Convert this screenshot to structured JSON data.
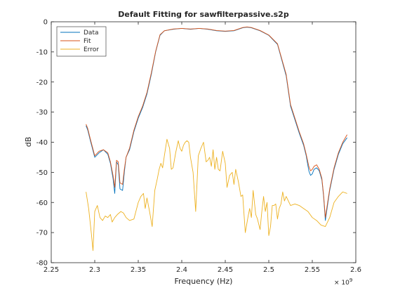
{
  "chart_data": {
    "type": "line",
    "title": "Default Fitting for sawfilterpassive.s2p",
    "xlabel": "Frequency (Hz)",
    "ylabel": "dB",
    "x_exponent_label": "× 10",
    "x_exponent_power": "9",
    "xlim": [
      2.25,
      2.6
    ],
    "ylim": [
      -80,
      0
    ],
    "x_unit_scale": 1000000000,
    "xticks": [
      2.25,
      2.3,
      2.35,
      2.4,
      2.45,
      2.5,
      2.55,
      2.6
    ],
    "xtick_labels": [
      "2.25",
      "2.3",
      "2.35",
      "2.4",
      "2.45",
      "2.5",
      "2.55",
      "2.6"
    ],
    "yticks": [
      -80,
      -70,
      -60,
      -50,
      -40,
      -30,
      -20,
      -10,
      0
    ],
    "ytick_labels": [
      "-80",
      "-70",
      "-60",
      "-50",
      "-40",
      "-30",
      "-20",
      "-10",
      "0"
    ],
    "grid": false,
    "legend_position": "top-left",
    "series": [
      {
        "name": "Data",
        "color": "#0072bd",
        "x": [
          2.29,
          2.292,
          2.295,
          2.3,
          2.305,
          2.31,
          2.315,
          2.318,
          2.321,
          2.323,
          2.325,
          2.327,
          2.329,
          2.332,
          2.334,
          2.336,
          2.34,
          2.345,
          2.35,
          2.355,
          2.36,
          2.365,
          2.37,
          2.375,
          2.38,
          2.39,
          2.4,
          2.41,
          2.42,
          2.43,
          2.44,
          2.45,
          2.46,
          2.47,
          2.475,
          2.48,
          2.49,
          2.5,
          2.51,
          2.52,
          2.525,
          2.53,
          2.535,
          2.54,
          2.543,
          2.546,
          2.548,
          2.55,
          2.552,
          2.555,
          2.558,
          2.561,
          2.563,
          2.565,
          2.57,
          2.575,
          2.58,
          2.585,
          2.59
        ],
        "y": [
          -34.5,
          -36,
          -39.5,
          -45,
          -43.5,
          -42.5,
          -44,
          -47,
          -52,
          -57,
          -46.5,
          -47.5,
          -55.5,
          -56,
          -50,
          -45,
          -42.5,
          -36.5,
          -32,
          -28.5,
          -24,
          -17.5,
          -10,
          -4.5,
          -3,
          -2.5,
          -2.2,
          -2.5,
          -2.2,
          -2.5,
          -3,
          -3.2,
          -3,
          -2,
          -1.8,
          -2,
          -3,
          -4.5,
          -7.5,
          -18,
          -28,
          -32.5,
          -37,
          -41,
          -44.5,
          -49.5,
          -51,
          -50.5,
          -49,
          -48.5,
          -49.5,
          -52.5,
          -58,
          -66,
          -56,
          -49,
          -44,
          -40.5,
          -38.5
        ]
      },
      {
        "name": "Fit",
        "color": "#d95319",
        "x": [
          2.29,
          2.292,
          2.295,
          2.3,
          2.305,
          2.31,
          2.315,
          2.318,
          2.321,
          2.323,
          2.325,
          2.327,
          2.329,
          2.332,
          2.334,
          2.336,
          2.34,
          2.345,
          2.35,
          2.355,
          2.36,
          2.365,
          2.37,
          2.375,
          2.38,
          2.39,
          2.4,
          2.41,
          2.42,
          2.43,
          2.44,
          2.45,
          2.46,
          2.47,
          2.475,
          2.48,
          2.49,
          2.5,
          2.51,
          2.52,
          2.525,
          2.53,
          2.535,
          2.54,
          2.543,
          2.546,
          2.548,
          2.55,
          2.552,
          2.555,
          2.558,
          2.561,
          2.563,
          2.565,
          2.57,
          2.575,
          2.58,
          2.585,
          2.59
        ],
        "y": [
          -34,
          -35.5,
          -39,
          -44.5,
          -43,
          -42.5,
          -43.5,
          -46.5,
          -51,
          -55,
          -46,
          -46.5,
          -53.5,
          -54,
          -49,
          -45,
          -42,
          -36,
          -31.5,
          -28,
          -23.5,
          -17,
          -9.8,
          -4.3,
          -3,
          -2.4,
          -2.2,
          -2.4,
          -2.2,
          -2.4,
          -2.9,
          -3.1,
          -2.9,
          -1.9,
          -1.7,
          -1.9,
          -2.9,
          -4.4,
          -7.3,
          -17.5,
          -27.5,
          -32,
          -36.5,
          -40.5,
          -44,
          -48,
          -49.5,
          -49,
          -48,
          -47.5,
          -49,
          -52,
          -57.5,
          -65,
          -55.5,
          -48.5,
          -43.5,
          -40,
          -37.5
        ]
      },
      {
        "name": "Error",
        "color": "#edb120",
        "x": [
          2.29,
          2.293,
          2.296,
          2.298,
          2.3,
          2.303,
          2.306,
          2.309,
          2.312,
          2.315,
          2.318,
          2.32,
          2.323,
          2.326,
          2.33,
          2.333,
          2.336,
          2.34,
          2.345,
          2.35,
          2.353,
          2.356,
          2.358,
          2.36,
          2.363,
          2.366,
          2.369,
          2.372,
          2.374,
          2.376,
          2.378,
          2.38,
          2.383,
          2.386,
          2.388,
          2.39,
          2.393,
          2.396,
          2.398,
          2.4,
          2.402,
          2.404,
          2.406,
          2.408,
          2.41,
          2.413,
          2.416,
          2.419,
          2.422,
          2.425,
          2.428,
          2.43,
          2.432,
          2.434,
          2.436,
          2.438,
          2.44,
          2.442,
          2.444,
          2.447,
          2.45,
          2.452,
          2.455,
          2.458,
          2.46,
          2.462,
          2.465,
          2.468,
          2.47,
          2.473,
          2.476,
          2.478,
          2.48,
          2.482,
          2.485,
          2.487,
          2.49,
          2.492,
          2.494,
          2.496,
          2.498,
          2.5,
          2.502,
          2.504,
          2.506,
          2.508,
          2.51,
          2.512,
          2.514,
          2.516,
          2.518,
          2.52,
          2.525,
          2.53,
          2.535,
          2.54,
          2.545,
          2.55,
          2.555,
          2.56,
          2.565,
          2.57,
          2.575,
          2.58,
          2.585,
          2.59
        ],
        "y": [
          -56.5,
          -62,
          -70,
          -76,
          -63,
          -61,
          -65,
          -66,
          -64.5,
          -65,
          -64,
          -66.5,
          -65,
          -64,
          -63,
          -63.5,
          -65,
          -66,
          -65.5,
          -60,
          -58,
          -57,
          -62,
          -58.5,
          -63,
          -68,
          -56,
          -52,
          -49,
          -47,
          -48.5,
          -44.5,
          -39,
          -42,
          -49,
          -48.5,
          -43.5,
          -39.5,
          -42,
          -43,
          -41,
          -40,
          -39.5,
          -40,
          -45,
          -50,
          -63,
          -44.5,
          -42,
          -40,
          -46.5,
          -46,
          -45,
          -48,
          -42.5,
          -49,
          -45,
          -49,
          -49.5,
          -43,
          -47,
          -55,
          -51,
          -50,
          -54,
          -49,
          -53,
          -58,
          -57.5,
          -70,
          -65,
          -62,
          -65,
          -56,
          -64,
          -65.5,
          -69,
          -63,
          -58,
          -63,
          -60,
          -71,
          -68,
          -61,
          -61,
          -60.5,
          -65.5,
          -62,
          -60.5,
          -56.5,
          -59.5,
          -58,
          -61,
          -60.5,
          -61,
          -62,
          -63,
          -65,
          -66,
          -67.5,
          -68,
          -65,
          -60,
          -58,
          -56.5,
          -57
        ]
      }
    ]
  }
}
